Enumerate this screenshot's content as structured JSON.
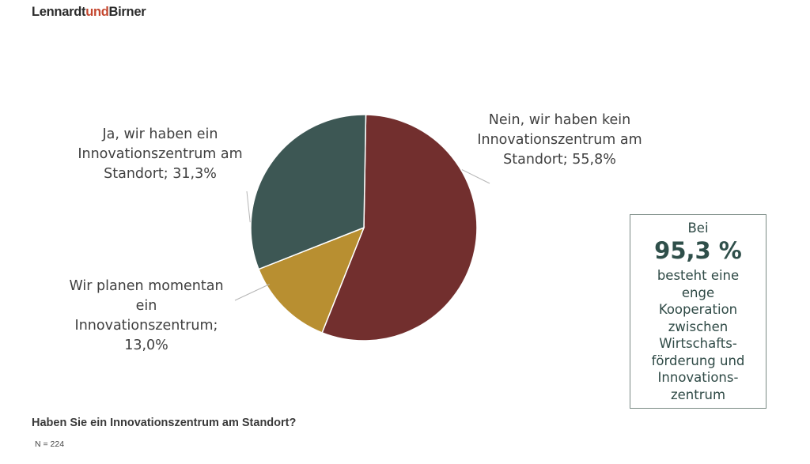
{
  "brand": {
    "part1": "Lennardt",
    "part2": "und",
    "part3": "Birner"
  },
  "chart_data": {
    "type": "pie",
    "slices": [
      {
        "label": "Nein, wir haben kein Innovationszentrum am Standort; 55,8%",
        "value": 55.8,
        "color": "#722f2e"
      },
      {
        "label": "Wir planen momentan ein Innovationszentrum; 13,0%",
        "value": 13.0,
        "color": "#b88f31"
      },
      {
        "label": "Ja, wir haben ein Innovationszentrum am Standort; 31,3%",
        "value": 31.3,
        "color": "#3d5754"
      }
    ],
    "start_angle_deg": 0,
    "direction": "clockwise",
    "label_lines": {
      "nein": [
        "Nein, wir haben kein",
        "Innovationszentrum am",
        "Standort; 55,8%"
      ],
      "ja": [
        "Ja, wir haben ein",
        "Innovationszentrum am",
        "Standort; 31,3%"
      ],
      "wir": [
        "Wir planen momentan",
        "ein",
        "Innovationszentrum;",
        "13,0%"
      ]
    }
  },
  "callout": {
    "line1": "Bei",
    "value": "95,3 %",
    "text_lines": [
      "besteht eine",
      "enge",
      "Kooperation",
      "zwischen",
      "Wirtschafts-",
      "förderung und",
      "Innovations-",
      "zentrum"
    ]
  },
  "question": "Haben Sie ein Innovationszentrum am Standort?",
  "sample_note": "N = 224"
}
